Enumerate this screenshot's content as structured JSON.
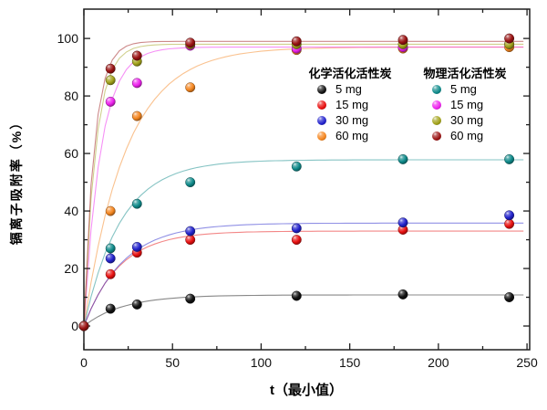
{
  "figure": {
    "background": "#ffffff",
    "axis_color": "#1f1f1f"
  },
  "chart_data": {
    "type": "scatter",
    "xlabel": "t（最小值）",
    "ylabel": "镉离子吸附率（%）",
    "xlim": [
      0,
      251.5
    ],
    "ylim": [
      -8.25,
      110.2
    ],
    "x_major_ticks": [
      0,
      50,
      100,
      150,
      200,
      250
    ],
    "x_minor_ticks": [
      25,
      75,
      125,
      175,
      225
    ],
    "y_major_ticks": [
      0,
      20,
      40,
      60,
      80,
      100
    ],
    "y_minor_ticks": [
      10,
      30,
      50,
      70,
      90
    ],
    "grid": false,
    "legend": {
      "position": "top-center-inside",
      "groups": [
        {
          "title": "化学活化活性炭",
          "items": [
            "5 mg",
            "15 mg",
            "30 mg",
            "60 mg"
          ],
          "series_indices": [
            0,
            1,
            2,
            3
          ]
        },
        {
          "title": "物理活化活性炭",
          "items": [
            "5 mg",
            "15 mg",
            "30 mg",
            "60 mg"
          ],
          "series_indices": [
            4,
            5,
            6,
            7
          ]
        }
      ]
    },
    "x": [
      0,
      15,
      30,
      60,
      120,
      180,
      240
    ],
    "series": [
      {
        "group": "化学活化活性炭",
        "name": "5 mg",
        "color": "#111111",
        "values": [
          0,
          6,
          7.5,
          9.5,
          10.5,
          11,
          10
        ],
        "fit_plateau": 10.8,
        "fit_k": 0.045
      },
      {
        "group": "化学活化活性炭",
        "name": "15 mg",
        "color": "#e81010",
        "values": [
          0,
          18,
          25.5,
          30,
          30,
          33.5,
          35.5
        ],
        "fit_plateau": 33.0,
        "fit_k": 0.05
      },
      {
        "group": "化学活化活性炭",
        "name": "30 mg",
        "color": "#2222cc",
        "values": [
          0,
          23.5,
          27.5,
          33,
          34,
          36,
          38.5
        ],
        "fit_plateau": 35.8,
        "fit_k": 0.045
      },
      {
        "group": "化学活化活性炭",
        "name": "60 mg",
        "color": "#f5861f",
        "values": [
          0,
          40,
          73,
          83,
          96,
          96.5,
          97
        ],
        "fit_plateau": 97.0,
        "fit_k": 0.042
      },
      {
        "group": "物理活化活性炭",
        "name": "5 mg",
        "color": "#0e8a8a",
        "values": [
          0,
          27,
          42.5,
          50,
          55.5,
          58,
          58
        ],
        "fit_plateau": 57.8,
        "fit_k": 0.048
      },
      {
        "group": "物理活化活性炭",
        "name": "15 mg",
        "color": "#ee22ee",
        "values": [
          0,
          78,
          84.5,
          97.5,
          96.5,
          97,
          98
        ],
        "fit_plateau": 97.0,
        "fit_k": 0.105
      },
      {
        "group": "物理活化活性炭",
        "name": "30 mg",
        "color": "#a2a21a",
        "values": [
          0,
          85.5,
          92,
          98,
          98,
          98,
          98
        ],
        "fit_plateau": 98.0,
        "fit_k": 0.15
      },
      {
        "group": "物理活化活性炭",
        "name": "60 mg",
        "color": "#9b1313",
        "values": [
          0,
          89.5,
          94,
          98.5,
          99,
          99.5,
          100
        ],
        "fit_plateau": 99.0,
        "fit_k": 0.17
      }
    ]
  }
}
